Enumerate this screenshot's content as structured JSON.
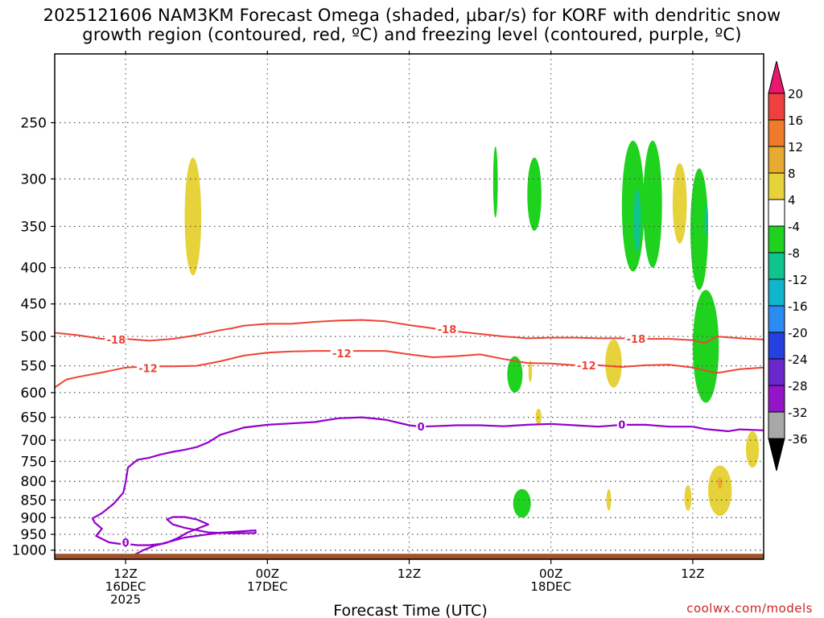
{
  "title_line1": "2025121606 NAM3KM Forecast Omega (shaded, μbar/s) for KORF with dendritic snow",
  "title_line2": "growth region (contoured, red, ºC) and freezing level (contoured, purple, ºC)",
  "credit": "coolwx.com/models",
  "chart_data": {
    "type": "heatmap",
    "title": "2025121606 NAM3KM Forecast Omega (shaded, μbar/s) for KORF with dendritic snow growth region (contoured, red, ºC) and freezing level (contoured, purple, ºC)",
    "xlabel": "Forecast Time (UTC)",
    "ylabel": "",
    "x_unit": "forecast hour from 2025-12-16 06Z",
    "xlim": [
      0,
      60
    ],
    "ylim_hPa": [
      1030,
      200
    ],
    "y_scale": "log",
    "x_ticks": [
      {
        "hour": 6,
        "labels": [
          "12Z",
          "16DEC",
          "2025"
        ]
      },
      {
        "hour": 18,
        "labels": [
          "00Z",
          "17DEC"
        ]
      },
      {
        "hour": 30,
        "labels": [
          "12Z"
        ]
      },
      {
        "hour": 42,
        "labels": [
          "00Z",
          "18DEC"
        ]
      },
      {
        "hour": 54,
        "labels": [
          "12Z"
        ]
      }
    ],
    "y_ticks": [
      250,
      300,
      350,
      400,
      450,
      500,
      550,
      600,
      650,
      700,
      750,
      800,
      850,
      900,
      950,
      1000
    ],
    "grid": "dotted horizontal at y ticks",
    "colorbar": {
      "ticks": [
        20,
        16,
        12,
        8,
        4,
        -4,
        -8,
        -12,
        -16,
        -20,
        -24,
        -28,
        -32,
        -36
      ],
      "colors": [
        "#e8176e",
        "#ef4040",
        "#ef7a2a",
        "#e8aa30",
        "#e6d23a",
        "#ffffff",
        "#1ed21e",
        "#10c490",
        "#10b4cc",
        "#2a8cf0",
        "#2440e0",
        "#6a28cc",
        "#9414c8",
        "#a8a8a8",
        "#000000"
      ]
    },
    "dgz_minus18": [
      [
        0,
        494
      ],
      [
        2,
        498
      ],
      [
        4,
        504
      ],
      [
        6,
        504
      ],
      [
        8,
        507
      ],
      [
        10,
        504
      ],
      [
        12,
        498
      ],
      [
        14,
        490
      ],
      [
        15,
        487
      ],
      [
        16,
        483
      ],
      [
        18,
        480
      ],
      [
        20,
        480
      ],
      [
        22,
        477
      ],
      [
        24,
        475
      ],
      [
        26,
        474
      ],
      [
        28,
        476
      ],
      [
        30,
        482
      ],
      [
        32,
        487
      ],
      [
        34,
        492
      ],
      [
        36,
        496
      ],
      [
        38,
        500
      ],
      [
        40,
        503
      ],
      [
        42,
        502
      ],
      [
        44,
        502
      ],
      [
        46,
        503
      ],
      [
        48,
        503
      ],
      [
        50,
        504
      ],
      [
        52,
        504
      ],
      [
        54,
        506
      ],
      [
        55,
        511
      ],
      [
        56,
        500
      ],
      [
        58,
        503
      ],
      [
        60,
        505
      ]
    ],
    "dgz_minus12": [
      [
        0,
        590
      ],
      [
        1,
        575
      ],
      [
        2,
        570
      ],
      [
        4,
        562
      ],
      [
        6,
        553
      ],
      [
        8,
        551
      ],
      [
        10,
        551
      ],
      [
        12,
        550
      ],
      [
        14,
        542
      ],
      [
        16,
        532
      ],
      [
        18,
        527
      ],
      [
        20,
        525
      ],
      [
        22,
        524
      ],
      [
        24,
        524
      ],
      [
        26,
        524
      ],
      [
        28,
        524
      ],
      [
        30,
        530
      ],
      [
        32,
        535
      ],
      [
        34,
        533
      ],
      [
        36,
        530
      ],
      [
        38,
        538
      ],
      [
        40,
        545
      ],
      [
        42,
        546
      ],
      [
        44,
        549
      ],
      [
        46,
        549
      ],
      [
        48,
        552
      ],
      [
        50,
        549
      ],
      [
        52,
        548
      ],
      [
        54,
        553
      ],
      [
        56,
        563
      ],
      [
        58,
        556
      ],
      [
        60,
        553
      ]
    ],
    "freezing_level_0C": [
      [
        60,
        678
      ],
      [
        58,
        676
      ],
      [
        57,
        680
      ],
      [
        55,
        675
      ],
      [
        54,
        670
      ],
      [
        52,
        670
      ],
      [
        50,
        666
      ],
      [
        48,
        666
      ],
      [
        46,
        670
      ],
      [
        44,
        667
      ],
      [
        42,
        664
      ],
      [
        40,
        666
      ],
      [
        38,
        669
      ],
      [
        36,
        667
      ],
      [
        34,
        667
      ],
      [
        32,
        669
      ],
      [
        31,
        670
      ],
      [
        30,
        667
      ],
      [
        28,
        655
      ],
      [
        26,
        650
      ],
      [
        24,
        652
      ],
      [
        22,
        660
      ],
      [
        20,
        663
      ],
      [
        18,
        666
      ],
      [
        16,
        672
      ],
      [
        14,
        688
      ],
      [
        13,
        705
      ],
      [
        12,
        716
      ],
      [
        11,
        722
      ],
      [
        10,
        727
      ],
      [
        9,
        733
      ],
      [
        8,
        741
      ],
      [
        7,
        746
      ],
      [
        6.2,
        765
      ],
      [
        6,
        803
      ],
      [
        5.8,
        830
      ],
      [
        5,
        860
      ],
      [
        4,
        887
      ],
      [
        3.2,
        902
      ],
      [
        3.4,
        915
      ],
      [
        4,
        933
      ],
      [
        3.5,
        955
      ],
      [
        4.6,
        975
      ],
      [
        5.5,
        980
      ],
      [
        6,
        980
      ],
      [
        7,
        984
      ],
      [
        8,
        984
      ],
      [
        9,
        980
      ],
      [
        10,
        970
      ],
      [
        11,
        960
      ],
      [
        12,
        955
      ],
      [
        14,
        945
      ],
      [
        17,
        938
      ],
      [
        17,
        946
      ],
      [
        15,
        947
      ],
      [
        13,
        944
      ],
      [
        11,
        930
      ],
      [
        10,
        920
      ],
      [
        9.5,
        905
      ],
      [
        10,
        898
      ],
      [
        11,
        898
      ],
      [
        12,
        905
      ],
      [
        13,
        920
      ],
      [
        11.2,
        945
      ],
      [
        10.5,
        960
      ],
      [
        9.5,
        976
      ],
      [
        8.5,
        985
      ],
      [
        7.5,
        1000
      ],
      [
        6.5,
        1020
      ]
    ],
    "contour_labels": [
      {
        "text": "-18",
        "hour": 5.2,
        "hPa": 505,
        "color": "#ee4433"
      },
      {
        "text": "-18",
        "hour": 33.2,
        "hPa": 488,
        "color": "#ee4433"
      },
      {
        "text": "-18",
        "hour": 49.2,
        "hPa": 504,
        "color": "#ee4433"
      },
      {
        "text": "-12",
        "hour": 7.9,
        "hPa": 554,
        "color": "#ee4433"
      },
      {
        "text": "-12",
        "hour": 24.3,
        "hPa": 528,
        "color": "#ee4433"
      },
      {
        "text": "-12",
        "hour": 45.0,
        "hPa": 549,
        "color": "#ee4433"
      },
      {
        "text": "0",
        "hour": 6.0,
        "hPa": 975,
        "color": "#9400cc"
      },
      {
        "text": "0",
        "hour": 31.0,
        "hPa": 670,
        "color": "#9400cc"
      },
      {
        "text": "0",
        "hour": 48.0,
        "hPa": 665,
        "color": "#9400cc"
      }
    ],
    "omega_areas": [
      {
        "range": "4 to 8",
        "t0": 11.0,
        "t1": 12.4,
        "p0": 280,
        "p1": 410
      },
      {
        "range": "4 to 8",
        "t0": 40.1,
        "t1": 40.4,
        "p0": 540,
        "p1": 580
      },
      {
        "range": "4 to 8",
        "t0": 40.7,
        "t1": 41.2,
        "p0": 632,
        "p1": 667
      },
      {
        "range": "4 to 8",
        "t0": 46.6,
        "t1": 48.0,
        "p0": 505,
        "p1": 590
      },
      {
        "range": "4 to 8",
        "t0": 46.7,
        "t1": 47.1,
        "p0": 820,
        "p1": 880
      },
      {
        "range": "4 to 8",
        "t0": 52.3,
        "t1": 53.5,
        "p0": 285,
        "p1": 370
      },
      {
        "range": "4 to 8",
        "t0": 53.3,
        "t1": 53.9,
        "p0": 810,
        "p1": 880
      },
      {
        "range": "4 to 8",
        "t0": 55.3,
        "t1": 57.3,
        "p0": 760,
        "p1": 895
      },
      {
        "range": "4 to 8",
        "t0": 58.5,
        "t1": 59.6,
        "p0": 680,
        "p1": 765
      },
      {
        "range": "8 to 12",
        "t0": 56.1,
        "t1": 56.5,
        "p0": 790,
        "p1": 820
      },
      {
        "range": "-4 to -8",
        "t0": 37.1,
        "t1": 37.5,
        "p0": 270,
        "p1": 340
      },
      {
        "range": "-4 to -8",
        "t0": 40.0,
        "t1": 41.2,
        "p0": 280,
        "p1": 355
      },
      {
        "range": "-4 to -8",
        "t0": 38.3,
        "t1": 39.6,
        "p0": 533,
        "p1": 600
      },
      {
        "range": "-4 to -8",
        "t0": 38.8,
        "t1": 40.3,
        "p0": 820,
        "p1": 900
      },
      {
        "range": "-4 to -8",
        "t0": 48.0,
        "t1": 49.9,
        "p0": 265,
        "p1": 405
      },
      {
        "range": "-4 to -8",
        "t0": 49.8,
        "t1": 51.4,
        "p0": 265,
        "p1": 400
      },
      {
        "range": "-4 to -8",
        "t0": 53.8,
        "t1": 55.3,
        "p0": 290,
        "p1": 430
      },
      {
        "range": "-4 to -8",
        "t0": 54.0,
        "t1": 56.2,
        "p0": 430,
        "p1": 620
      },
      {
        "range": "-8 to -12",
        "t0": 49.0,
        "t1": 49.6,
        "p0": 310,
        "p1": 380
      },
      {
        "range": "-8 to -12",
        "t0": 55.0,
        "t1": 55.3,
        "p0": 325,
        "p1": 360
      }
    ],
    "ground": {
      "hPa_top": 1012,
      "color": "#a0522d"
    }
  }
}
